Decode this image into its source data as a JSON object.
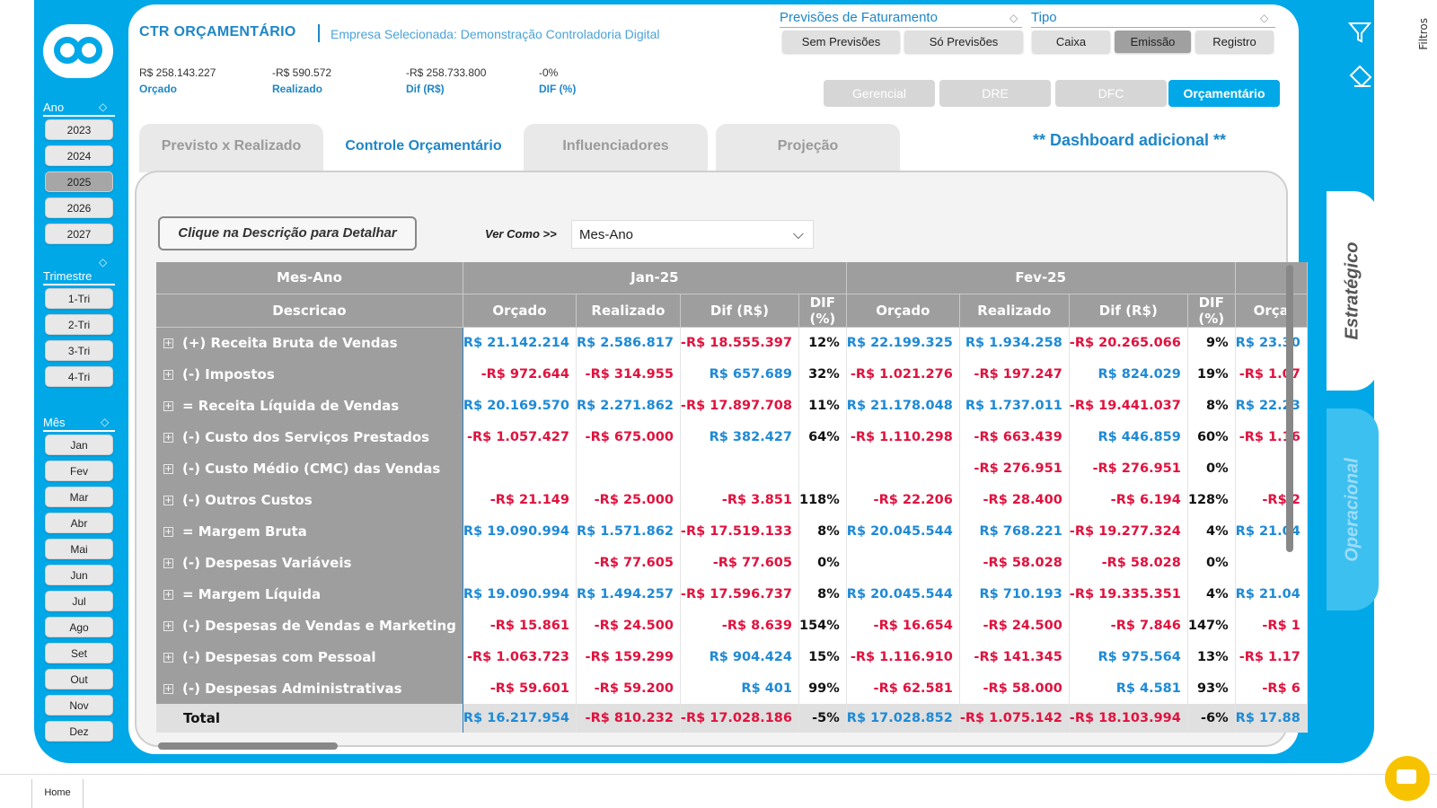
{
  "header": {
    "title": "CTR ORÇAMENTÁRIO",
    "subtitle": "Empresa Selecionada: Demonstração Controladoria Digital"
  },
  "kpis": [
    {
      "value": "R$ 258.143.227",
      "label": "Orçado"
    },
    {
      "value": "-R$ 590.572",
      "label": "Realizado"
    },
    {
      "value": "-R$ 258.733.800",
      "label": "Dif (R$)"
    },
    {
      "value": "-0%",
      "label": "DIF (%)"
    }
  ],
  "filters": {
    "previsoes": {
      "title": "Previsões de Faturamento",
      "options": [
        "Sem Previsões",
        "Só Previsões"
      ]
    },
    "tipo": {
      "title": "Tipo",
      "options": [
        "Caixa",
        "Emissão",
        "Registro"
      ],
      "selected": "Emissão"
    }
  },
  "nav": {
    "buttons": [
      "Gerencial",
      "DRE",
      "DFC",
      "Orçamentário"
    ],
    "active": "Orçamentário"
  },
  "tabs": {
    "items": [
      "Previsto x Realizado",
      "Controle Orçamentário",
      "Influenciadores",
      "Projeção"
    ],
    "active": "Controle Orçamentário"
  },
  "dashboard_additional": "** Dashboard adicional **",
  "detail_button": "Clique na Descrição para Detalhar",
  "view_as": {
    "label": "Ver Como >>",
    "value": "Mes-Ano"
  },
  "sidebar": {
    "ano": {
      "label": "Ano",
      "items": [
        "2023",
        "2024",
        "2025",
        "2026",
        "2027"
      ],
      "selected": "2025"
    },
    "trimestre": {
      "label": "Trimestre",
      "items": [
        "1-Tri",
        "2-Tri",
        "3-Tri",
        "4-Tri"
      ]
    },
    "mes": {
      "label": "Mês",
      "items": [
        "Jan",
        "Fev",
        "Mar",
        "Abr",
        "Mai",
        "Jun",
        "Jul",
        "Ago",
        "Set",
        "Out",
        "Nov",
        "Dez"
      ]
    }
  },
  "side_tabs": {
    "estrategico": "Estratégico",
    "operacional": "Operacional"
  },
  "filters_strip": "Filtros",
  "bottom": {
    "home_tab": "Home"
  },
  "table": {
    "row_header_top": "Mes-Ano",
    "row_header": "Descricao",
    "periods": [
      "Jan-25",
      "Fev-25"
    ],
    "columns": [
      "Orçado",
      "Realizado",
      "Dif (R$)",
      "DIF (%)",
      "Orçado",
      "Realizado",
      "Dif (R$)",
      "DIF (%)",
      "Orça"
    ],
    "rows": [
      {
        "desc": "(+) Receita Bruta de Vendas",
        "cells": [
          [
            "R$ 21.142.214",
            "pos"
          ],
          [
            "R$ 2.586.817",
            "pos"
          ],
          [
            "-R$ 18.555.397",
            "neg"
          ],
          [
            "12%",
            "pct"
          ],
          [
            "R$ 22.199.325",
            "pos"
          ],
          [
            "R$ 1.934.258",
            "pos"
          ],
          [
            "-R$ 20.265.066",
            "neg"
          ],
          [
            "9%",
            "pct"
          ],
          [
            "R$ 23.30",
            "pos"
          ]
        ]
      },
      {
        "desc": "(-) Impostos",
        "cells": [
          [
            "-R$ 972.644",
            "neg"
          ],
          [
            "-R$ 314.955",
            "neg"
          ],
          [
            "R$ 657.689",
            "pos"
          ],
          [
            "32%",
            "pct"
          ],
          [
            "-R$ 1.021.276",
            "neg"
          ],
          [
            "-R$ 197.247",
            "neg"
          ],
          [
            "R$ 824.029",
            "pos"
          ],
          [
            "19%",
            "pct"
          ],
          [
            "-R$ 1.07",
            "neg"
          ]
        ]
      },
      {
        "desc": "= Receita Líquida de Vendas",
        "cells": [
          [
            "R$ 20.169.570",
            "pos"
          ],
          [
            "R$ 2.271.862",
            "pos"
          ],
          [
            "-R$ 17.897.708",
            "neg"
          ],
          [
            "11%",
            "pct"
          ],
          [
            "R$ 21.178.048",
            "pos"
          ],
          [
            "R$ 1.737.011",
            "pos"
          ],
          [
            "-R$ 19.441.037",
            "neg"
          ],
          [
            "8%",
            "pct"
          ],
          [
            "R$ 22.23",
            "pos"
          ]
        ]
      },
      {
        "desc": "(-) Custo dos Serviços Prestados",
        "cells": [
          [
            "-R$ 1.057.427",
            "neg"
          ],
          [
            "-R$ 675.000",
            "neg"
          ],
          [
            "R$ 382.427",
            "pos"
          ],
          [
            "64%",
            "pct"
          ],
          [
            "-R$ 1.110.298",
            "neg"
          ],
          [
            "-R$ 663.439",
            "neg"
          ],
          [
            "R$ 446.859",
            "pos"
          ],
          [
            "60%",
            "pct"
          ],
          [
            "-R$ 1.16",
            "neg"
          ]
        ]
      },
      {
        "desc": "(-) Custo Médio (CMC) das Vendas",
        "cells": [
          [
            "",
            "pct"
          ],
          [
            "",
            "pct"
          ],
          [
            "",
            "pct"
          ],
          [
            "",
            "pct"
          ],
          [
            "",
            "pct"
          ],
          [
            "-R$ 276.951",
            "neg"
          ],
          [
            "-R$ 276.951",
            "neg"
          ],
          [
            "0%",
            "pct"
          ],
          [
            "",
            "pct"
          ]
        ]
      },
      {
        "desc": "(-) Outros Custos",
        "cells": [
          [
            "-R$ 21.149",
            "neg"
          ],
          [
            "-R$ 25.000",
            "neg"
          ],
          [
            "-R$ 3.851",
            "neg"
          ],
          [
            "118%",
            "pct"
          ],
          [
            "-R$ 22.206",
            "neg"
          ],
          [
            "-R$ 28.400",
            "neg"
          ],
          [
            "-R$ 6.194",
            "neg"
          ],
          [
            "128%",
            "pct"
          ],
          [
            "-R$ 2",
            "neg"
          ]
        ]
      },
      {
        "desc": "= Margem Bruta",
        "cells": [
          [
            "R$ 19.090.994",
            "pos"
          ],
          [
            "R$ 1.571.862",
            "pos"
          ],
          [
            "-R$ 17.519.133",
            "neg"
          ],
          [
            "8%",
            "pct"
          ],
          [
            "R$ 20.045.544",
            "pos"
          ],
          [
            "R$ 768.221",
            "pos"
          ],
          [
            "-R$ 19.277.324",
            "neg"
          ],
          [
            "4%",
            "pct"
          ],
          [
            "R$ 21.04",
            "pos"
          ]
        ]
      },
      {
        "desc": "(-) Despesas Variáveis",
        "cells": [
          [
            "",
            "pct"
          ],
          [
            "-R$ 77.605",
            "neg"
          ],
          [
            "-R$ 77.605",
            "neg"
          ],
          [
            "0%",
            "pct"
          ],
          [
            "",
            "pct"
          ],
          [
            "-R$ 58.028",
            "neg"
          ],
          [
            "-R$ 58.028",
            "neg"
          ],
          [
            "0%",
            "pct"
          ],
          [
            "",
            "pct"
          ]
        ]
      },
      {
        "desc": "= Margem Líquida",
        "cells": [
          [
            "R$ 19.090.994",
            "pos"
          ],
          [
            "R$ 1.494.257",
            "pos"
          ],
          [
            "-R$ 17.596.737",
            "neg"
          ],
          [
            "8%",
            "pct"
          ],
          [
            "R$ 20.045.544",
            "pos"
          ],
          [
            "R$ 710.193",
            "pos"
          ],
          [
            "-R$ 19.335.351",
            "neg"
          ],
          [
            "4%",
            "pct"
          ],
          [
            "R$ 21.04",
            "pos"
          ]
        ]
      },
      {
        "desc": "(-) Despesas de Vendas e Marketing",
        "cells": [
          [
            "-R$ 15.861",
            "neg"
          ],
          [
            "-R$ 24.500",
            "neg"
          ],
          [
            "-R$ 8.639",
            "neg"
          ],
          [
            "154%",
            "pct"
          ],
          [
            "-R$ 16.654",
            "neg"
          ],
          [
            "-R$ 24.500",
            "neg"
          ],
          [
            "-R$ 7.846",
            "neg"
          ],
          [
            "147%",
            "pct"
          ],
          [
            "-R$ 1",
            "neg"
          ]
        ]
      },
      {
        "desc": "(-) Despesas com Pessoal",
        "cells": [
          [
            "-R$ 1.063.723",
            "neg"
          ],
          [
            "-R$ 159.299",
            "neg"
          ],
          [
            "R$ 904.424",
            "pos"
          ],
          [
            "15%",
            "pct"
          ],
          [
            "-R$ 1.116.910",
            "neg"
          ],
          [
            "-R$ 141.345",
            "neg"
          ],
          [
            "R$ 975.564",
            "pos"
          ],
          [
            "13%",
            "pct"
          ],
          [
            "-R$ 1.17",
            "neg"
          ]
        ]
      },
      {
        "desc": "(-) Despesas Administrativas",
        "cells": [
          [
            "-R$ 59.601",
            "neg"
          ],
          [
            "-R$ 59.200",
            "neg"
          ],
          [
            "R$ 401",
            "pos"
          ],
          [
            "99%",
            "pct"
          ],
          [
            "-R$ 62.581",
            "neg"
          ],
          [
            "-R$ 58.000",
            "neg"
          ],
          [
            "R$ 4.581",
            "pos"
          ],
          [
            "93%",
            "pct"
          ],
          [
            "-R$ 6",
            "neg"
          ]
        ]
      }
    ],
    "total": {
      "desc": "Total",
      "cells": [
        [
          "R$ 16.217.954",
          "pos"
        ],
        [
          "-R$ 810.232",
          "neg"
        ],
        [
          "-R$ 17.028.186",
          "neg"
        ],
        [
          "-5%",
          "pct"
        ],
        [
          "R$ 17.028.852",
          "pos"
        ],
        [
          "-R$ 1.075.142",
          "neg"
        ],
        [
          "-R$ 18.103.994",
          "neg"
        ],
        [
          "-6%",
          "pct"
        ],
        [
          "R$ 17.88",
          "pos"
        ]
      ]
    }
  },
  "colors": {
    "accent": "#00a8e8",
    "title": "#1e86c7",
    "negative": "#e0123e",
    "positive": "#1e8ad6",
    "header_gray": "#9e9e9e"
  }
}
